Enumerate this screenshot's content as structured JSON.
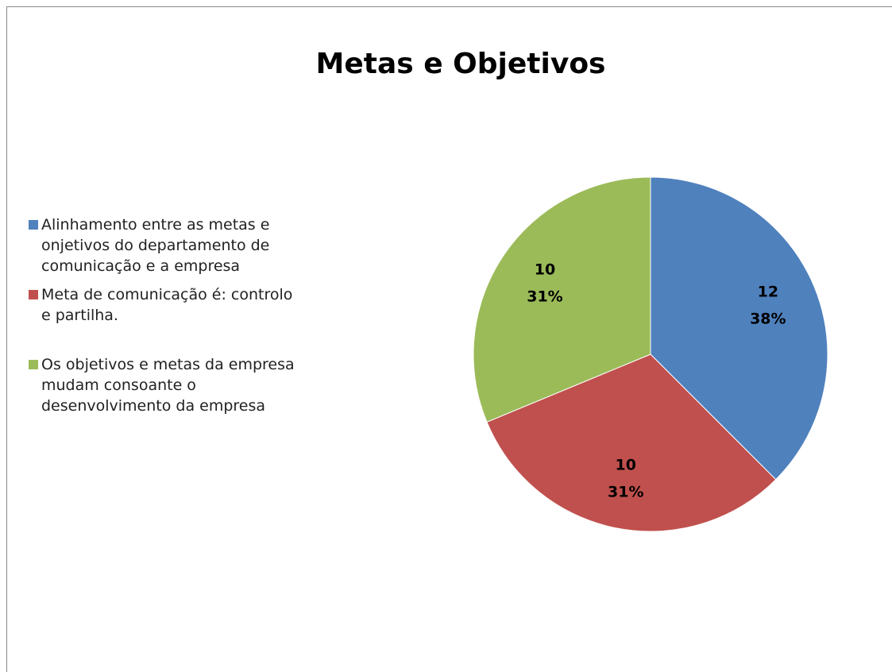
{
  "chart_data": {
    "type": "pie",
    "title": "Metas e Objetivos",
    "categories": [
      "Alinhamento entre as metas e onjetivos do departamento de comunicação e a empresa",
      "Meta de comunicação é: controlo e partilha.",
      "Os objetivos e metas da empresa mudam consoante o desenvolvimento da empresa"
    ],
    "values": [
      12,
      10,
      10
    ],
    "percent_labels": [
      "38%",
      "31%",
      "31%"
    ],
    "colors": [
      "#4f81bd",
      "#c0504d",
      "#9bbb59"
    ],
    "legend": "left"
  }
}
